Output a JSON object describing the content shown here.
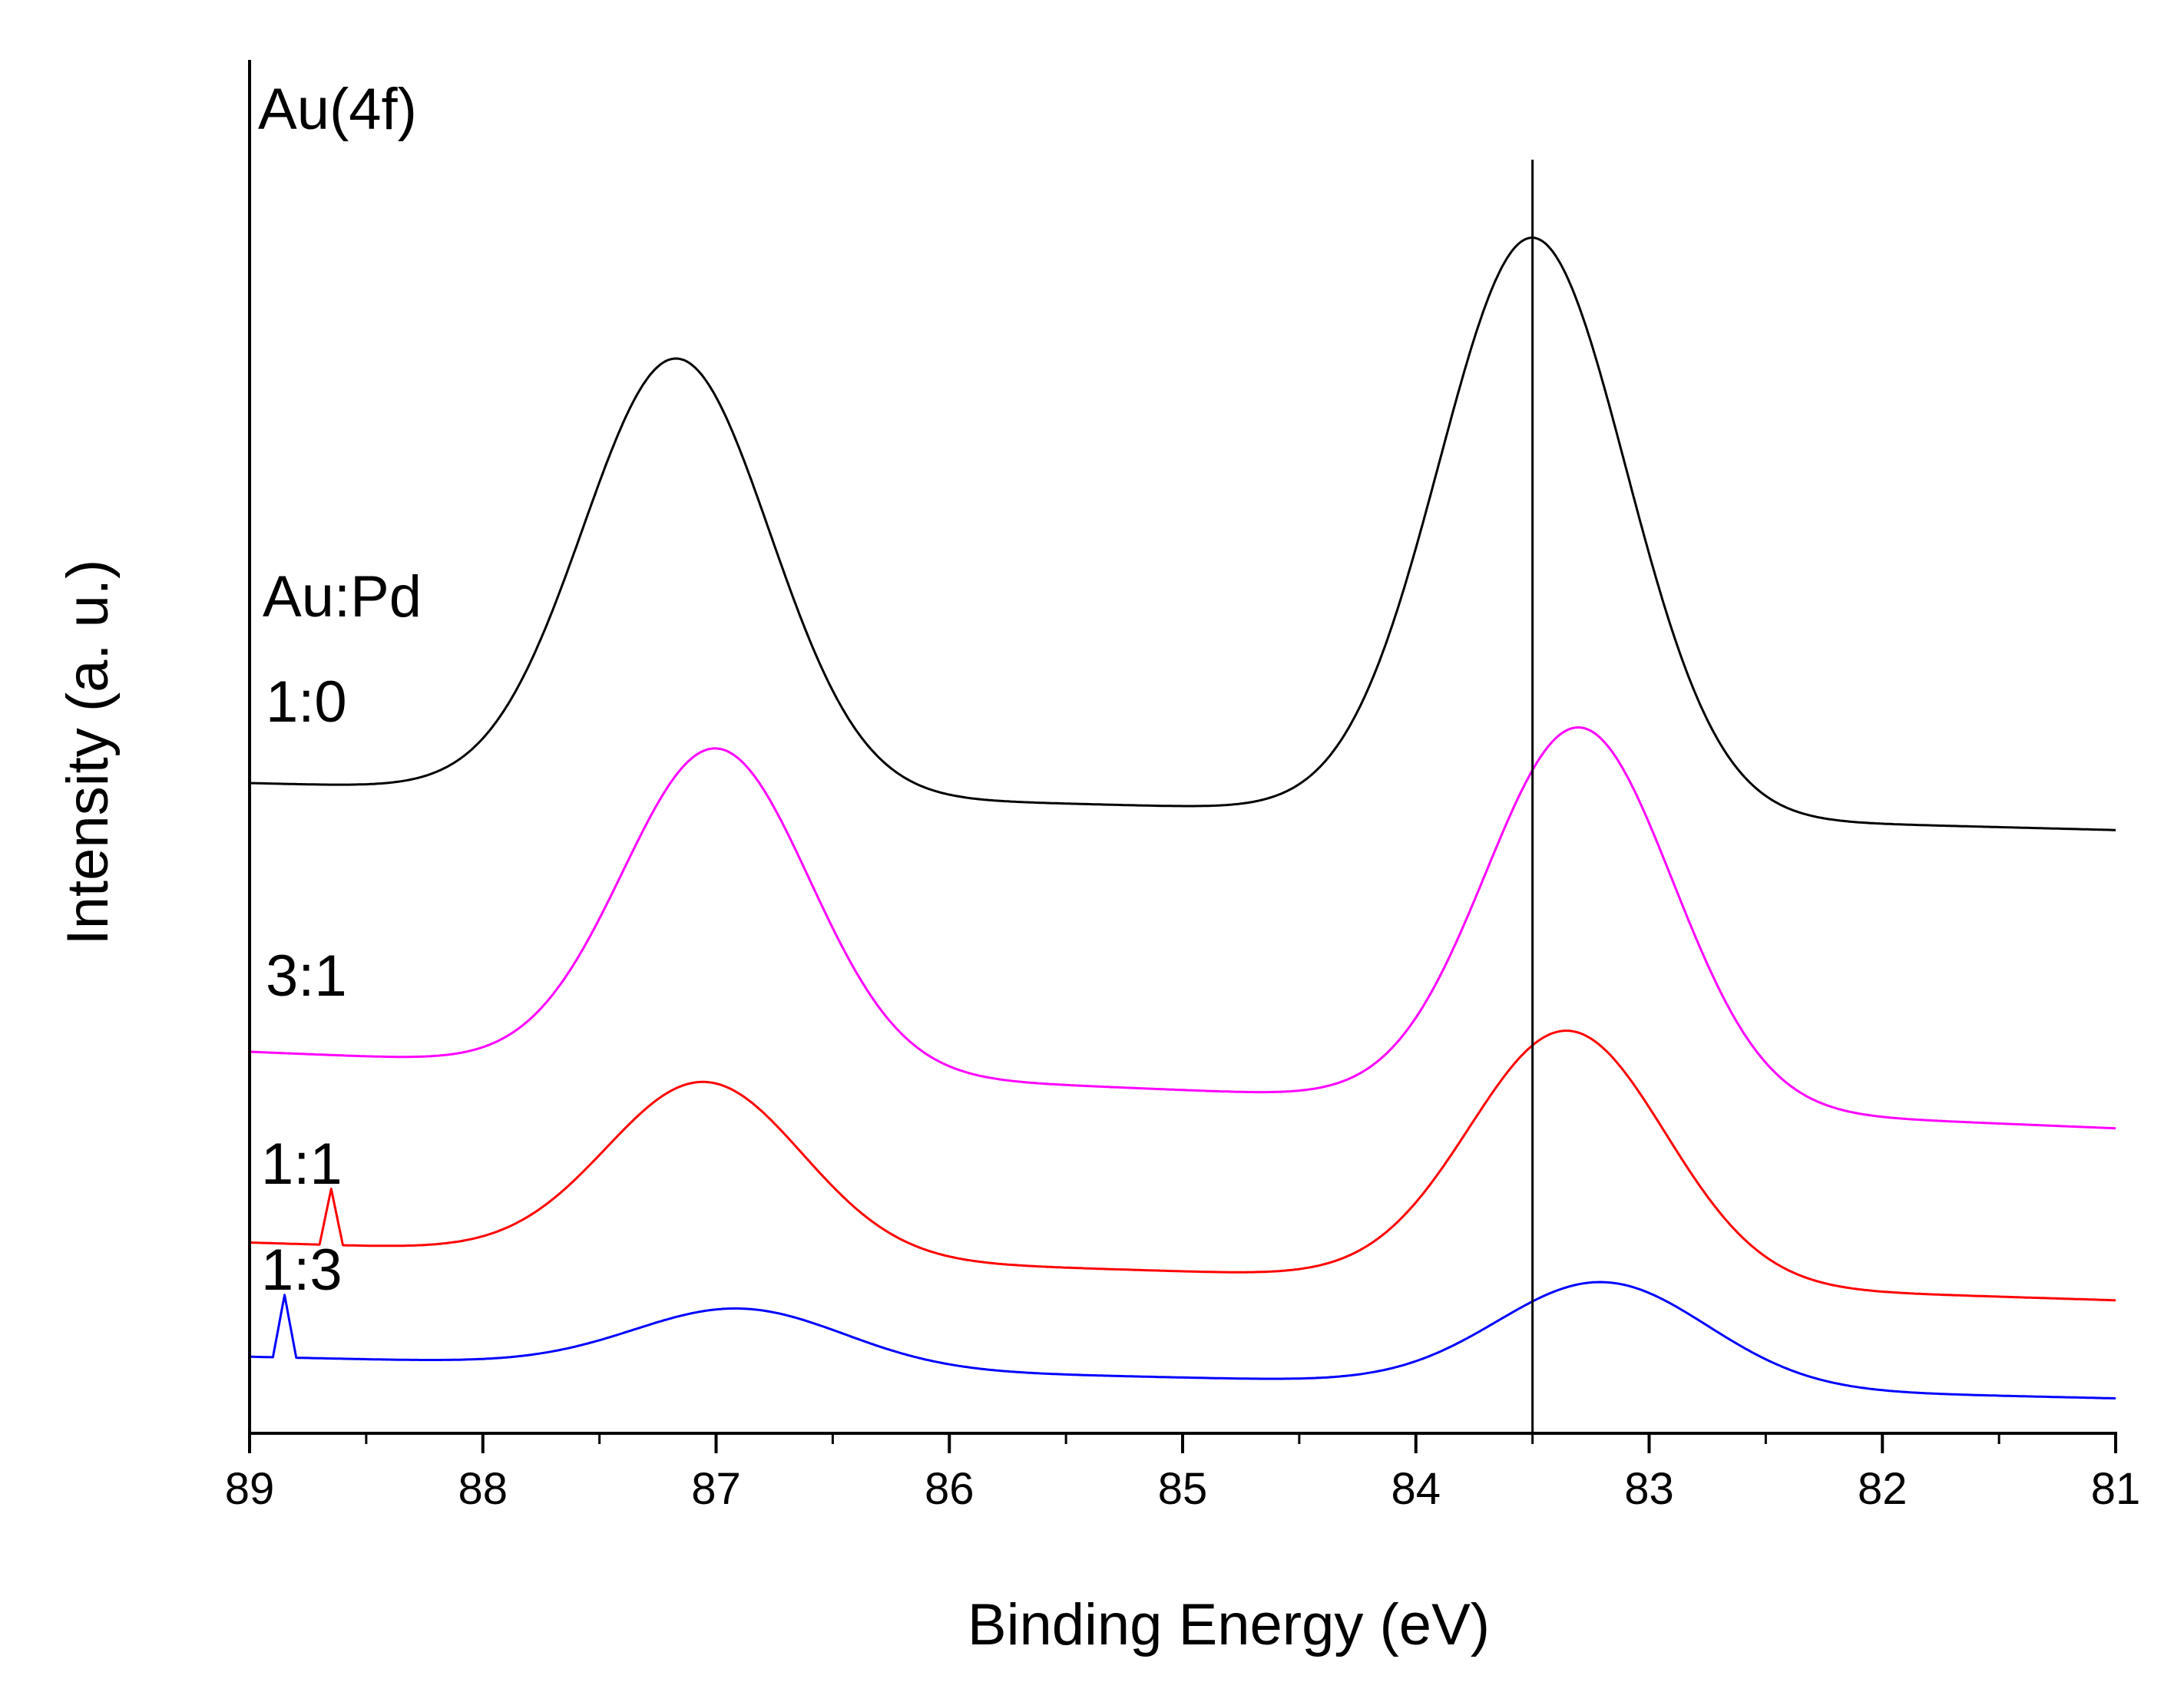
{
  "chart_data": {
    "type": "line",
    "title": "",
    "xlabel": "Binding Energy (eV)",
    "ylabel": "Intensity (a. u.)",
    "xlim": [
      89,
      81
    ],
    "x_reversed": true,
    "x_ticks": [
      89,
      88,
      87,
      86,
      85,
      84,
      83,
      82,
      81
    ],
    "x_tick_labels": [
      "89",
      "88",
      "87",
      "86",
      "85",
      "84",
      "83",
      "82",
      "81"
    ],
    "ylim": [
      0,
      100
    ],
    "y_ticks_shown": false,
    "grid": false,
    "reference_line": {
      "x": 83.5,
      "color": "#000000"
    },
    "annotations": {
      "panel_label": "Au(4f)",
      "legend_header": "Au:Pd"
    },
    "series": [
      {
        "name": "1:0",
        "color": "#000000",
        "baseline_start": 48,
        "baseline_end": 44.5,
        "valley": {
          "x": 85.3,
          "y": 46.4
        },
        "peaks": [
          {
            "x": 87.17,
            "height": 32.4,
            "sigma": 0.4
          },
          {
            "x": 83.5,
            "height": 43.0,
            "sigma": 0.4
          }
        ],
        "glitch": null
      },
      {
        "name": "3:1",
        "color": "#ff00ff",
        "baseline_start": 28,
        "baseline_end": 22.3,
        "valley": {
          "x": 84.6,
          "y": 28.6
        },
        "peaks": [
          {
            "x": 87.0,
            "height": 24.0,
            "sigma": 0.4
          },
          {
            "x": 83.3,
            "height": 28.2,
            "sigma": 0.4
          }
        ],
        "glitch": null
      },
      {
        "name": "1:1",
        "color": "#ff0000",
        "baseline_start": 13.8,
        "baseline_end": 9.5,
        "valley": {
          "x": 84.9,
          "y": 11.4
        },
        "peaks": [
          {
            "x": 87.05,
            "height": 13.0,
            "sigma": 0.42
          },
          {
            "x": 83.35,
            "height": 18.8,
            "sigma": 0.42
          }
        ],
        "glitch": {
          "x": 88.65,
          "y": 17.8
        }
      },
      {
        "name": "1:3",
        "color": "#0000ff",
        "baseline_start": 5.3,
        "baseline_end": 2.2,
        "valley": {
          "x": 85.0,
          "y": 3.7
        },
        "peaks": [
          {
            "x": 86.9,
            "height": 4.4,
            "sigma": 0.45
          },
          {
            "x": 83.2,
            "height": 7.8,
            "sigma": 0.45
          }
        ],
        "glitch": {
          "x": 88.85,
          "y": 9.9
        }
      }
    ]
  }
}
